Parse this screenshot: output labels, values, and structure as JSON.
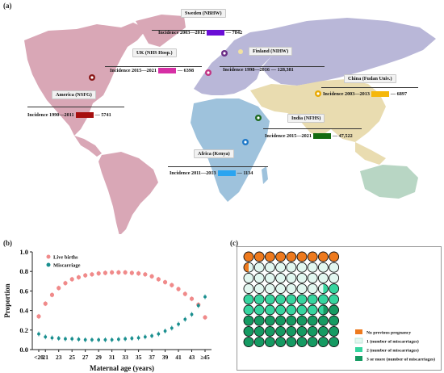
{
  "panels": {
    "a": "(a)",
    "b": "(b)",
    "c": "(c)"
  },
  "map": {
    "regions": [
      {
        "id": "sweden",
        "name": "Sweden (NBHW)",
        "incidence": "Incidence  2003—2012",
        "value": "— 7842",
        "color": "#6a0dd6"
      },
      {
        "id": "finland",
        "name": "Finland (NIHW)",
        "incidence": "Incidence  1998—2016",
        "value": "— 128,381",
        "color": ""
      },
      {
        "id": "uk",
        "name": "UK (NHS Hosp.)",
        "incidence": "Incidence  2015—2021",
        "value": "— 6398",
        "color": "#d62fa5"
      },
      {
        "id": "america",
        "name": "America (NSFG)",
        "incidence": "Incidence 1990—2011",
        "value": "— 5741",
        "color": "#a60f0f"
      },
      {
        "id": "china",
        "name": "China (Fudan Univ.)",
        "incidence": "Incidence  2003—2013",
        "value": "— 6897",
        "color": "#f5b70a"
      },
      {
        "id": "india",
        "name": "India (NFHS)",
        "incidence": "Incidence  2015—2021",
        "value": "— 47,522",
        "color": "#136b10"
      },
      {
        "id": "africa",
        "name": "Africa (Kenya)",
        "incidence": "Incidence  2011—2013",
        "value": "— 1134",
        "color": "#2aa4f0"
      }
    ]
  },
  "chart_data": [
    {
      "type": "line",
      "xlabel": "Maternal age (years)",
      "ylabel": "Proportion",
      "ylim": [
        0,
        1.0
      ],
      "yticks": [
        "0.0",
        "0.2",
        "0.4",
        "0.6",
        "0.8",
        "1.0"
      ],
      "xticks": [
        "<20",
        "21",
        "23",
        "25",
        "27",
        "29",
        "31",
        "33",
        "35",
        "37",
        "39",
        "41",
        "43",
        "≥45"
      ],
      "x": [
        "<20",
        "21",
        "22",
        "23",
        "24",
        "25",
        "26",
        "27",
        "28",
        "29",
        "30",
        "31",
        "32",
        "33",
        "34",
        "35",
        "36",
        "37",
        "38",
        "39",
        "40",
        "41",
        "42",
        "43",
        "44",
        "≥45"
      ],
      "series": [
        {
          "name": "Live births",
          "color": "#f08a8a",
          "values": [
            0.34,
            0.47,
            0.56,
            0.63,
            0.68,
            0.72,
            0.74,
            0.76,
            0.77,
            0.78,
            0.785,
            0.79,
            0.79,
            0.79,
            0.785,
            0.78,
            0.77,
            0.75,
            0.72,
            0.69,
            0.66,
            0.62,
            0.57,
            0.52,
            0.46,
            0.33
          ]
        },
        {
          "name": "Miscarriage",
          "color": "#1a8f8f",
          "values": [
            0.16,
            0.13,
            0.12,
            0.115,
            0.11,
            0.11,
            0.105,
            0.1,
            0.1,
            0.1,
            0.1,
            0.1,
            0.105,
            0.11,
            0.115,
            0.12,
            0.13,
            0.14,
            0.16,
            0.19,
            0.22,
            0.26,
            0.31,
            0.36,
            0.45,
            0.54
          ]
        }
      ],
      "legend_position": "top-left"
    },
    {
      "type": "waffle",
      "rows": 9,
      "cols": 9,
      "categories": [
        {
          "name": "No previous pregnancy",
          "color": "#ee7a1e",
          "count": 9.5
        },
        {
          "name": "1 (number of miscarriages)",
          "color": "#e2f7f0",
          "count": 25
        },
        {
          "name": "2 (number of miscarriages)",
          "color": "#36d59f",
          "count": 18
        },
        {
          "name": "3 or more (number of miscarriages)",
          "color": "#159a62",
          "count": 28.5
        }
      ],
      "legend_position": "bottom-right"
    }
  ]
}
